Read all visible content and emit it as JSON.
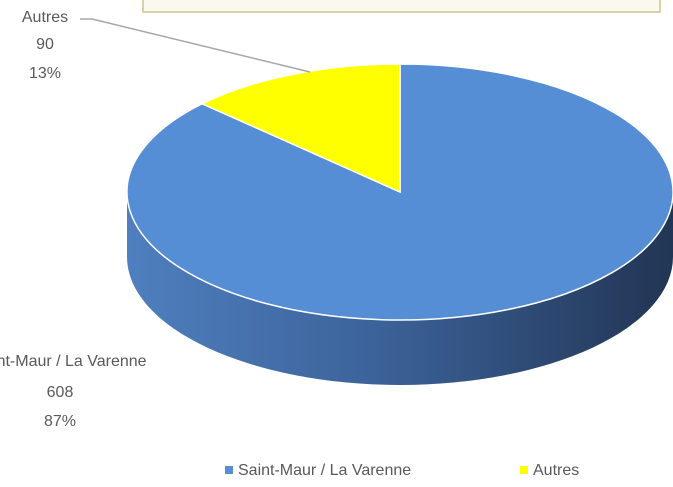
{
  "chart_data": {
    "type": "pie",
    "three_d": true,
    "categories": [
      "Saint-Maur / La Varenne",
      "Autres"
    ],
    "values": [
      608,
      90
    ],
    "percent_labels": [
      "87%",
      "13%"
    ],
    "colors": [
      "#558ed5",
      "#ffff00"
    ],
    "legend": "bottom"
  }
}
